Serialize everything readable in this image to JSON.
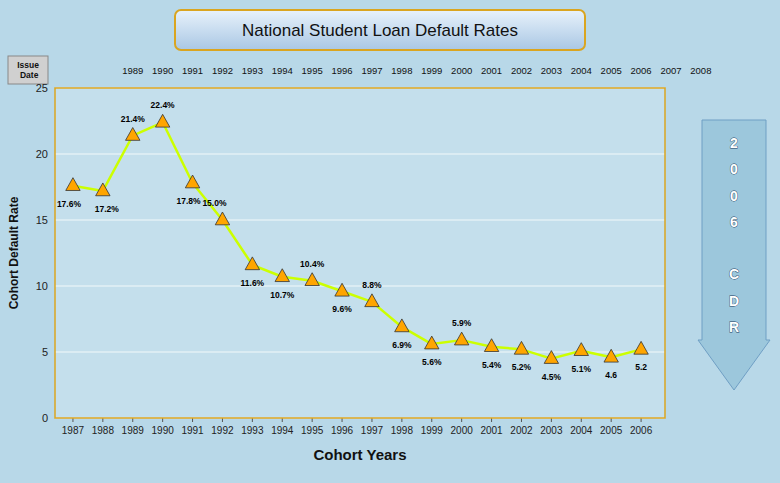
{
  "chart_data": {
    "type": "line",
    "title": "National Student Loan Default Rates",
    "xlabel": "Cohort Years",
    "ylabel": "Cohort Default Rate",
    "x": [
      1987,
      1988,
      1989,
      1990,
      1991,
      1992,
      1993,
      1994,
      1995,
      1996,
      1997,
      1998,
      1999,
      2000,
      2001,
      2002,
      2003,
      2004,
      2005,
      2006
    ],
    "values": [
      17.6,
      17.2,
      21.4,
      22.4,
      17.8,
      15.0,
      11.6,
      10.7,
      10.4,
      9.6,
      8.8,
      6.9,
      5.6,
      5.9,
      5.4,
      5.2,
      4.5,
      5.1,
      4.6,
      5.2
    ],
    "value_labels": [
      "17.6%",
      "17.2%",
      "21.4%",
      "22.4%",
      "17.8%",
      "15.0%",
      "11.6%",
      "10.7%",
      "10.4%",
      "9.6%",
      "8.8%",
      "6.9%",
      "5.6%",
      "5.9%",
      "5.4%",
      "5.2%",
      "4.5%",
      "5.1%",
      "4.6",
      "5.2"
    ],
    "data_labels": true,
    "color": "#CCFF00",
    "marker": "triangle",
    "xlim": [
      1986.4,
      2006.8
    ],
    "xticks": [
      1987,
      1988,
      1989,
      1990,
      1991,
      1992,
      1993,
      1994,
      1995,
      1996,
      1997,
      1998,
      1999,
      2000,
      2001,
      2002,
      2003,
      2004,
      2005,
      2006
    ],
    "ylim": [
      0,
      25
    ],
    "yticks": [
      0,
      5,
      10,
      15,
      20,
      25
    ],
    "grid": true,
    "issue_date_label": "Issue Date",
    "issue_dates": [
      1989,
      1990,
      1991,
      1992,
      1993,
      1994,
      1995,
      1996,
      1997,
      1998,
      1999,
      2000,
      2001,
      2002,
      2003,
      2004,
      2005,
      2006,
      2007,
      2008
    ],
    "annotations": [
      "2006 CDR"
    ]
  }
}
